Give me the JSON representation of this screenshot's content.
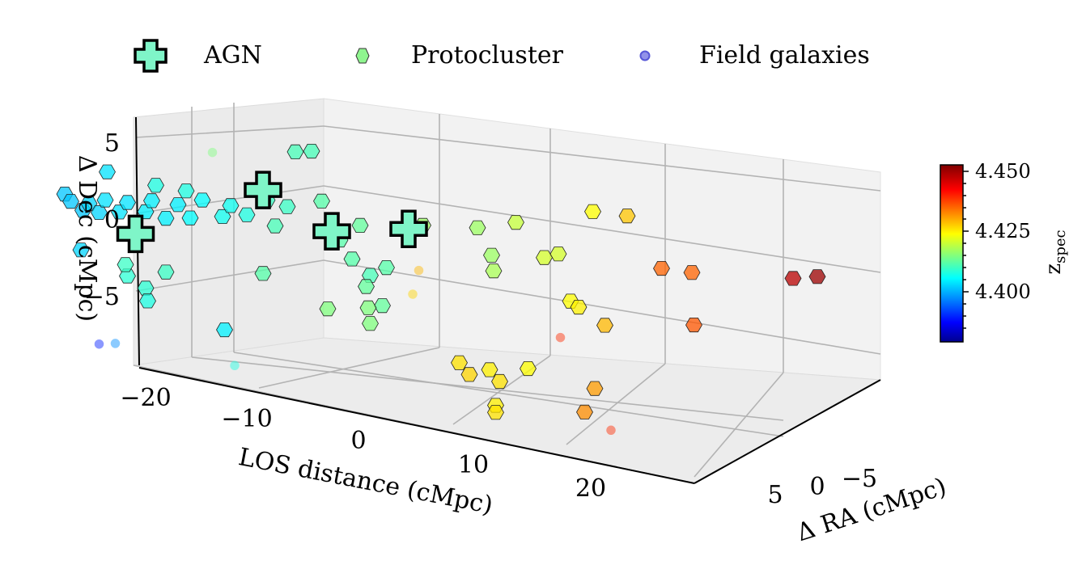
{
  "legend": {
    "items": [
      {
        "label": "AGN",
        "marker": "plus"
      },
      {
        "label": "Protocluster",
        "marker": "hexagon"
      },
      {
        "label": "Field galaxies",
        "marker": "circle"
      }
    ]
  },
  "colorbar": {
    "label": "z_spec",
    "label_main": "z",
    "label_sub": "spec",
    "ticks": [
      "4.450",
      "4.425",
      "4.400"
    ],
    "range": [
      4.38,
      4.452
    ],
    "colormap": "jet"
  },
  "chart_data": {
    "type": "scatter",
    "projection": "3d",
    "xlabel": "LOS distance  (cMpc)",
    "ylabel": "Δ RA (cMpc)",
    "zlabel": "Δ Dec  (cMpc)",
    "x_ticks": [
      "−20",
      "−10",
      "0",
      "10",
      "20"
    ],
    "y_ticks": [
      "5",
      "0",
      "−5"
    ],
    "z_ticks": [
      "5",
      "0",
      "−5"
    ],
    "xlim": [
      -23,
      27
    ],
    "ylim": [
      8,
      -9
    ],
    "zlim": [
      -10,
      6
    ],
    "grid": true,
    "legend_position": "top",
    "color_by": "z_spec",
    "series": [
      {
        "name": "AGN",
        "marker": "plus",
        "fill": "#7ff5c8",
        "points": [
          {
            "x": -4.2,
            "y": -1.5,
            "z": 1.5,
            "zspec": 4.413
          },
          {
            "x": -0.8,
            "y": 0.5,
            "z": -1.2,
            "zspec": 4.413
          },
          {
            "x": 3.0,
            "y": -3.5,
            "z": -0.8,
            "zspec": 4.413
          },
          {
            "x": -10.5,
            "y": 2.0,
            "z": -2.0,
            "zspec": 4.413
          }
        ]
      },
      {
        "name": "Protocluster",
        "marker": "hexagon",
        "points": [
          {
            "x": -14.0,
            "y": 1.0,
            "z": 0.6,
            "zspec": 4.403
          },
          {
            "x": -13.7,
            "y": 1.0,
            "z": 0.1,
            "zspec": 4.403
          },
          {
            "x": -13.1,
            "y": 1.0,
            "z": -0.5,
            "zspec": 4.403
          },
          {
            "x": -12.8,
            "y": 1.0,
            "z": 0.0,
            "zspec": 4.404
          },
          {
            "x": -12.3,
            "y": 1.0,
            "z": -0.6,
            "zspec": 4.404
          },
          {
            "x": -12.0,
            "y": 1.0,
            "z": 0.3,
            "zspec": 4.405
          },
          {
            "x": -11.3,
            "y": 1.0,
            "z": -0.5,
            "zspec": 4.405
          },
          {
            "x": -10.9,
            "y": 1.0,
            "z": 0.2,
            "zspec": 4.405
          },
          {
            "x": -10.0,
            "y": 1.0,
            "z": -0.4,
            "zspec": 4.406
          },
          {
            "x": -9.7,
            "y": 1.0,
            "z": 0.4,
            "zspec": 4.406
          },
          {
            "x": -9.0,
            "y": 1.0,
            "z": -0.8,
            "zspec": 4.406
          },
          {
            "x": -8.4,
            "y": 1.0,
            "z": 0.2,
            "zspec": 4.406
          },
          {
            "x": -7.8,
            "y": 1.0,
            "z": -0.7,
            "zspec": 4.407
          },
          {
            "x": -7.2,
            "y": 1.0,
            "z": 0.6,
            "zspec": 4.407
          },
          {
            "x": -6.2,
            "y": 1.0,
            "z": -0.5,
            "zspec": 4.408
          },
          {
            "x": -5.8,
            "y": 1.0,
            "z": 0.3,
            "zspec": 4.408
          },
          {
            "x": -11.9,
            "y": 1.0,
            "z": 2.3,
            "zspec": 4.405
          },
          {
            "x": -13.2,
            "y": 1.0,
            "z": -3.3,
            "zspec": 4.404
          },
          {
            "x": -9.5,
            "y": 1.0,
            "z": 1.5,
            "zspec": 4.409
          },
          {
            "x": -8.0,
            "y": 1.0,
            "z": 1.2,
            "zspec": 4.409
          },
          {
            "x": -5.0,
            "y": 1.0,
            "z": -0.3,
            "zspec": 4.409
          },
          {
            "x": -4.0,
            "y": 1.0,
            "z": 0.8,
            "zspec": 4.411
          },
          {
            "x": -3.0,
            "y": 1.0,
            "z": 0.4,
            "zspec": 4.411
          },
          {
            "x": -2.6,
            "y": 1.0,
            "z": 4.3,
            "zspec": 4.412
          },
          {
            "x": -1.8,
            "y": 1.0,
            "z": 4.4,
            "zspec": 4.412
          },
          {
            "x": -3.6,
            "y": 1.0,
            "z": -1.0,
            "zspec": 4.412
          },
          {
            "x": -1.3,
            "y": 1.0,
            "z": 0.9,
            "zspec": 4.413
          },
          {
            "x": -0.4,
            "y": 1.0,
            "z": -1.8,
            "zspec": 4.413
          },
          {
            "x": 0.6,
            "y": 1.0,
            "z": -0.7,
            "zspec": 4.414
          },
          {
            "x": 0.2,
            "y": 1.0,
            "z": -3.1,
            "zspec": 4.413
          },
          {
            "x": -9.0,
            "y": 1.0,
            "z": -4.6,
            "zspec": 4.411
          },
          {
            "x": -10.9,
            "y": 1.0,
            "z": -5.0,
            "zspec": 4.41
          },
          {
            "x": -10.0,
            "y": 1.0,
            "z": -5.8,
            "zspec": 4.41
          },
          {
            "x": -9.9,
            "y": 1.0,
            "z": -6.7,
            "zspec": 4.409
          },
          {
            "x": -11.0,
            "y": 1.0,
            "z": -4.2,
            "zspec": 4.411
          },
          {
            "x": -6.1,
            "y": 1.0,
            "z": -8.5,
            "zspec": 4.406
          },
          {
            "x": -4.2,
            "y": 1.0,
            "z": -4.4,
            "zspec": 4.413
          },
          {
            "x": 1.9,
            "y": 1.0,
            "z": -3.6,
            "zspec": 4.413
          },
          {
            "x": 1.1,
            "y": 1.0,
            "z": -4.2,
            "zspec": 4.412
          },
          {
            "x": 0.9,
            "y": 1.0,
            "z": -5.0,
            "zspec": 4.414
          },
          {
            "x": 1.7,
            "y": 1.0,
            "z": -6.3,
            "zspec": 4.414
          },
          {
            "x": -1.0,
            "y": 1.0,
            "z": -6.7,
            "zspec": 4.416
          },
          {
            "x": 1.0,
            "y": 1.0,
            "z": -6.5,
            "zspec": 4.416
          },
          {
            "x": 1.1,
            "y": 1.0,
            "z": -7.6,
            "zspec": 4.416
          },
          {
            "x": 3.7,
            "y": 1.0,
            "z": -0.5,
            "zspec": 4.418
          },
          {
            "x": 6.4,
            "y": 1.0,
            "z": -0.5,
            "zspec": 4.418
          },
          {
            "x": 7.1,
            "y": 1.0,
            "z": -2.4,
            "zspec": 4.418
          },
          {
            "x": 7.2,
            "y": 1.0,
            "z": -3.5,
            "zspec": 4.419
          },
          {
            "x": 8.3,
            "y": 1.0,
            "z": 0.0,
            "zspec": 4.421
          },
          {
            "x": 9.7,
            "y": 1.0,
            "z": -2.4,
            "zspec": 4.422
          },
          {
            "x": 10.4,
            "y": 1.0,
            "z": -2.1,
            "zspec": 4.422
          },
          {
            "x": 12.1,
            "y": 1.0,
            "z": 1.0,
            "zspec": 4.425
          },
          {
            "x": 13.8,
            "y": 1.0,
            "z": 0.8,
            "zspec": 4.429
          },
          {
            "x": 11.0,
            "y": 1.0,
            "z": -5.4,
            "zspec": 4.425
          },
          {
            "x": 11.4,
            "y": 1.0,
            "z": -5.8,
            "zspec": 4.426
          },
          {
            "x": 12.7,
            "y": 1.0,
            "z": -7.0,
            "zspec": 4.43
          },
          {
            "x": 5.5,
            "y": 1.0,
            "z": -10.1,
            "zspec": 4.427
          },
          {
            "x": 6.0,
            "y": 1.0,
            "z": -10.9,
            "zspec": 4.428
          },
          {
            "x": 7.0,
            "y": 1.0,
            "z": -10.5,
            "zspec": 4.426
          },
          {
            "x": 8.9,
            "y": 1.0,
            "z": -10.3,
            "zspec": 4.425
          },
          {
            "x": 7.5,
            "y": 1.0,
            "z": -11.3,
            "zspec": 4.427
          },
          {
            "x": 12.2,
            "y": 1.0,
            "z": -11.5,
            "zspec": 4.432
          },
          {
            "x": 7.3,
            "y": 1.0,
            "z": -13.0,
            "zspec": 4.426
          },
          {
            "x": 7.3,
            "y": 1.0,
            "z": -13.5,
            "zspec": 4.427
          },
          {
            "x": 11.7,
            "y": 1.0,
            "z": -13.2,
            "zspec": 4.433
          },
          {
            "x": 15.5,
            "y": 1.0,
            "z": -2.8,
            "zspec": 4.436
          },
          {
            "x": 17.0,
            "y": 1.0,
            "z": -3.0,
            "zspec": 4.436
          },
          {
            "x": 17.1,
            "y": 1.0,
            "z": -6.7,
            "zspec": 4.437
          },
          {
            "x": 22.0,
            "y": 1.0,
            "z": -3.1,
            "zspec": 4.448
          },
          {
            "x": 23.2,
            "y": 1.0,
            "z": -2.9,
            "zspec": 4.45
          }
        ]
      },
      {
        "name": "Field galaxies",
        "marker": "circle",
        "points": [
          {
            "x": -20.0,
            "y": 1.0,
            "z": 5.0,
            "zspec": 4.386
          },
          {
            "x": -19.5,
            "y": 1.0,
            "z": 4.8,
            "zspec": 4.387
          },
          {
            "x": -18.3,
            "y": 1.0,
            "z": 4.8,
            "zspec": 4.388
          },
          {
            "x": -18.2,
            "y": 1.0,
            "z": 4.5,
            "zspec": 4.388
          },
          {
            "x": -17.7,
            "y": 1.0,
            "z": 6.1,
            "zspec": 4.388
          },
          {
            "x": -21.7,
            "y": 1.0,
            "z": 2.3,
            "zspec": 4.389
          },
          {
            "x": -20.6,
            "y": 1.0,
            "z": 1.9,
            "zspec": 4.39
          },
          {
            "x": -25.0,
            "y": 1.0,
            "z": -1.4,
            "zspec": 4.382
          },
          {
            "x": -21.6,
            "y": 1.0,
            "z": -2.1,
            "zspec": 4.392
          },
          {
            "x": -12.3,
            "y": 1.0,
            "z": -9.9,
            "zspec": 4.391
          },
          {
            "x": -11.5,
            "y": 1.0,
            "z": -9.8,
            "zspec": 4.399
          },
          {
            "x": -6.7,
            "y": 1.0,
            "z": 4.0,
            "zspec": 4.416
          },
          {
            "x": -5.6,
            "y": 1.0,
            "z": -11.0,
            "zspec": 4.409
          },
          {
            "x": 3.5,
            "y": 1.0,
            "z": -3.7,
            "zspec": 4.43
          },
          {
            "x": 3.2,
            "y": 1.0,
            "z": -5.4,
            "zspec": 4.428
          },
          {
            "x": 10.5,
            "y": 1.0,
            "z": -8.0,
            "zspec": 4.44
          },
          {
            "x": 13.0,
            "y": 1.0,
            "z": -14.4,
            "zspec": 4.44
          }
        ]
      }
    ]
  }
}
